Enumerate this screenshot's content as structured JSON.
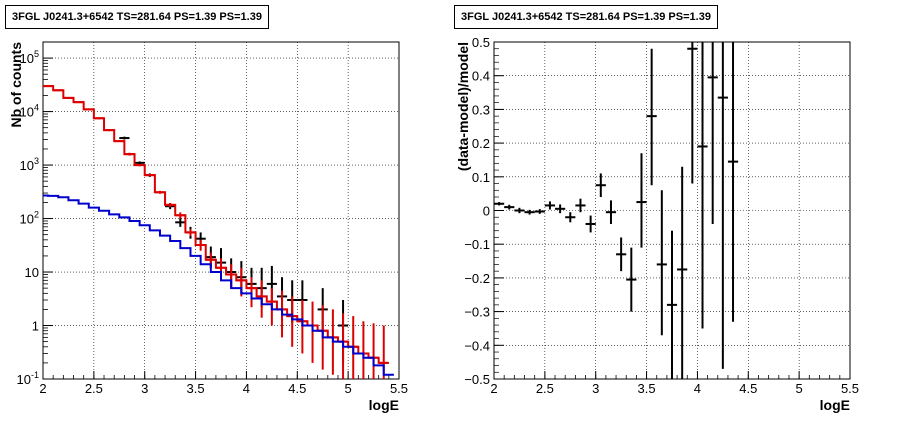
{
  "chart_data": [
    {
      "type": "line",
      "title": "3FGL J0241.3+6542 TS=281.64 PS=1.39 PS=1.39",
      "xlabel": "logE",
      "ylabel": "Nb of counts",
      "xlim": [
        2,
        5.5
      ],
      "ylim": [
        0.1,
        200000
      ],
      "yscale": "log",
      "grid": true,
      "xticks": [
        "2",
        "2.5",
        "3",
        "3.5",
        "4",
        "4.5",
        "5",
        "5.5"
      ],
      "yticks": [
        "10^-1",
        "1",
        "10",
        "10^2",
        "10^3",
        "10^4",
        "10^5"
      ],
      "series": [
        {
          "color": "#000000",
          "style": "errorbars",
          "x": [
            2.8,
            2.95,
            3.05,
            3.25,
            3.35,
            3.45,
            3.55,
            3.65,
            3.75,
            3.85,
            3.95,
            4.05,
            4.15,
            4.25,
            4.35,
            4.45,
            4.55,
            4.75,
            4.95
          ],
          "y": [
            3200,
            1100,
            650,
            170,
            85,
            55,
            42,
            19,
            15,
            10,
            8,
            6,
            5,
            6,
            3.5,
            3,
            3,
            2,
            1
          ],
          "ylo": [
            3000,
            1030,
            600,
            150,
            70,
            42,
            32,
            12,
            7,
            5,
            4,
            3,
            2.2,
            2.8,
            1.5,
            1.1,
            1.2,
            0.7,
            0.2
          ],
          "yhi": [
            3400,
            1170,
            700,
            195,
            105,
            70,
            55,
            30,
            28,
            18,
            16,
            12,
            12,
            13,
            8,
            7,
            7,
            5,
            3
          ]
        },
        {
          "color": "#dd0000",
          "style": "steps",
          "x": [
            2.05,
            2.15,
            2.25,
            2.35,
            2.45,
            2.55,
            2.65,
            2.75,
            2.85,
            2.95,
            3.05,
            3.15,
            3.25,
            3.35,
            3.45,
            3.55,
            3.65,
            3.75,
            3.85,
            3.95,
            4.05,
            4.15,
            4.25,
            4.35,
            4.45,
            4.55,
            4.65,
            4.75,
            4.85,
            4.95,
            5.05,
            5.15,
            5.25,
            5.35
          ],
          "y": [
            30000,
            25000,
            18000,
            15000,
            11000,
            7500,
            4500,
            2800,
            1600,
            1000,
            650,
            310,
            180,
            115,
            55,
            32,
            17,
            12,
            9,
            7,
            5,
            3.5,
            2.8,
            2.0,
            1.5,
            1.2,
            1.0,
            0.8,
            0.6,
            0.5,
            0.4,
            0.3,
            0.25,
            0.2
          ],
          "ylo": [
            29000,
            24200,
            17400,
            14500,
            10600,
            7200,
            4300,
            2700,
            1500,
            950,
            610,
            290,
            165,
            100,
            47,
            25,
            12,
            7,
            5,
            3.5,
            2.2,
            1.4,
            1,
            0.6,
            0.4,
            0.3,
            0.2,
            0.15,
            0.12,
            0.1,
            0.1,
            0.1,
            0.1,
            0.1
          ],
          "yhi": [
            31000,
            25800,
            18600,
            15500,
            11400,
            7800,
            4700,
            2900,
            1700,
            1050,
            690,
            330,
            195,
            130,
            63,
            40,
            23,
            18,
            14,
            12,
            8,
            7,
            5,
            4.5,
            3.5,
            3,
            2.8,
            2.4,
            2,
            1.7,
            1.5,
            1.2,
            1.1,
            1
          ]
        },
        {
          "color": "#0000cc",
          "style": "steps",
          "x": [
            2.0,
            2.1,
            2.2,
            2.3,
            2.4,
            2.5,
            2.6,
            2.7,
            2.8,
            2.9,
            3.0,
            3.1,
            3.2,
            3.3,
            3.4,
            3.5,
            3.6,
            3.7,
            3.8,
            3.9,
            4.0,
            4.1,
            4.2,
            4.3,
            4.4,
            4.5,
            4.6,
            4.7,
            4.8,
            4.9,
            5.0,
            5.1,
            5.2,
            5.3,
            5.4
          ],
          "y": [
            270,
            265,
            250,
            220,
            190,
            160,
            140,
            120,
            105,
            90,
            75,
            60,
            48,
            38,
            28,
            20,
            14,
            10,
            7,
            5,
            4,
            3.2,
            2.5,
            2.0,
            1.6,
            1.3,
            1.0,
            0.8,
            0.6,
            0.5,
            0.4,
            0.3,
            0.25,
            0.18,
            0.12
          ]
        }
      ]
    },
    {
      "type": "scatter",
      "title": "3FGL J0241.3+6542 TS=281.64 PS=1.39 PS=1.39",
      "xlabel": "logE",
      "ylabel": "(data-model)/model",
      "xlim": [
        2,
        5.5
      ],
      "ylim": [
        -0.5,
        0.5
      ],
      "grid": true,
      "xticks": [
        "2",
        "2.5",
        "3",
        "3.5",
        "4",
        "4.5",
        "5",
        "5.5"
      ],
      "yticks": [
        "−0.5",
        "−0.4",
        "−0.3",
        "−0.2",
        "−0.1",
        "0",
        "0.1",
        "0.2",
        "0.3",
        "0.4",
        "0.5"
      ],
      "series": [
        {
          "color": "#000000",
          "style": "errorbars",
          "x": [
            2.05,
            2.15,
            2.25,
            2.35,
            2.45,
            2.55,
            2.65,
            2.75,
            2.85,
            2.95,
            3.05,
            3.15,
            3.25,
            3.35,
            3.45,
            3.55,
            3.65,
            3.75,
            3.85,
            3.95,
            4.05,
            4.15,
            4.25,
            4.35
          ],
          "y": [
            0.02,
            0.01,
            0.0,
            -0.005,
            -0.003,
            0.015,
            0.005,
            -0.02,
            0.015,
            -0.04,
            0.075,
            -0.005,
            -0.13,
            -0.205,
            0.025,
            0.28,
            -0.16,
            -0.28,
            -0.175,
            0.48,
            0.19,
            0.395,
            0.335,
            0.145
          ],
          "ylo": [
            0.015,
            0.003,
            -0.008,
            -0.012,
            -0.01,
            0.003,
            -0.008,
            -0.035,
            -0.005,
            -0.065,
            0.04,
            -0.04,
            -0.18,
            -0.3,
            -0.11,
            0.075,
            -0.37,
            -0.5,
            -0.5,
            0.08,
            -0.35,
            -0.04,
            -0.47,
            -0.33
          ],
          "yhi": [
            0.025,
            0.017,
            0.008,
            0.002,
            0.004,
            0.027,
            0.018,
            -0.005,
            0.035,
            -0.015,
            0.11,
            0.03,
            -0.08,
            -0.11,
            0.17,
            0.48,
            0.06,
            -0.06,
            0.13,
            0.5,
            0.5,
            0.5,
            0.5,
            0.5
          ]
        }
      ]
    }
  ]
}
